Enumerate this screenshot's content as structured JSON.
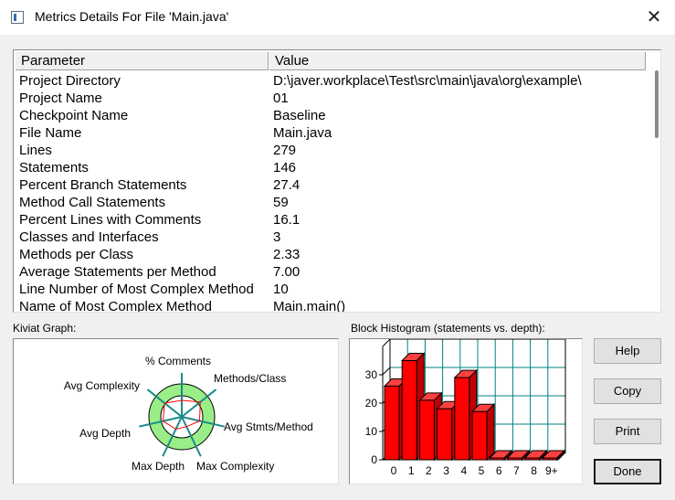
{
  "window": {
    "title": "Metrics Details For File 'Main.java'",
    "close_label": "✕"
  },
  "table": {
    "headers": {
      "parameter": "Parameter",
      "value": "Value"
    },
    "rows": [
      {
        "parameter": "Project Directory",
        "value": "D:\\javer.workplace\\Test\\src\\main\\java\\org\\example\\"
      },
      {
        "parameter": "Project Name",
        "value": "01"
      },
      {
        "parameter": "Checkpoint Name",
        "value": "Baseline"
      },
      {
        "parameter": "File Name",
        "value": "Main.java"
      },
      {
        "parameter": "Lines",
        "value": "279"
      },
      {
        "parameter": "Statements",
        "value": "146"
      },
      {
        "parameter": "Percent Branch Statements",
        "value": "27.4"
      },
      {
        "parameter": "Method Call Statements",
        "value": "59"
      },
      {
        "parameter": "Percent Lines with Comments",
        "value": "16.1"
      },
      {
        "parameter": "Classes and Interfaces",
        "value": "3"
      },
      {
        "parameter": "Methods per Class",
        "value": "2.33"
      },
      {
        "parameter": "Average Statements per Method",
        "value": "7.00"
      },
      {
        "parameter": "Line Number of Most Complex Method",
        "value": "10"
      },
      {
        "parameter": "Name of Most Complex Method",
        "value": "Main.main()"
      }
    ]
  },
  "kiviat": {
    "label": "Kiviat Graph:",
    "axes": [
      "% Comments",
      "Methods/Class",
      "Avg Stmts/Method",
      "Max Complexity",
      "Max Depth",
      "Avg Depth",
      "Avg Complexity"
    ]
  },
  "chart_data": {
    "type": "bar",
    "title": "Block Histogram (statements vs. depth):",
    "categories": [
      "0",
      "1",
      "2",
      "3",
      "4",
      "5",
      "6",
      "7",
      "8",
      "9+"
    ],
    "values": [
      26,
      35,
      21,
      18,
      29,
      17,
      0,
      0,
      0,
      0
    ],
    "yticks": [
      "0",
      "10",
      "20",
      "30"
    ],
    "ylim": [
      0,
      40
    ],
    "bar_color": "#ff0000",
    "grid_color": "#008080"
  },
  "buttons": {
    "help": "Help",
    "copy": "Copy",
    "print": "Print",
    "done": "Done"
  }
}
